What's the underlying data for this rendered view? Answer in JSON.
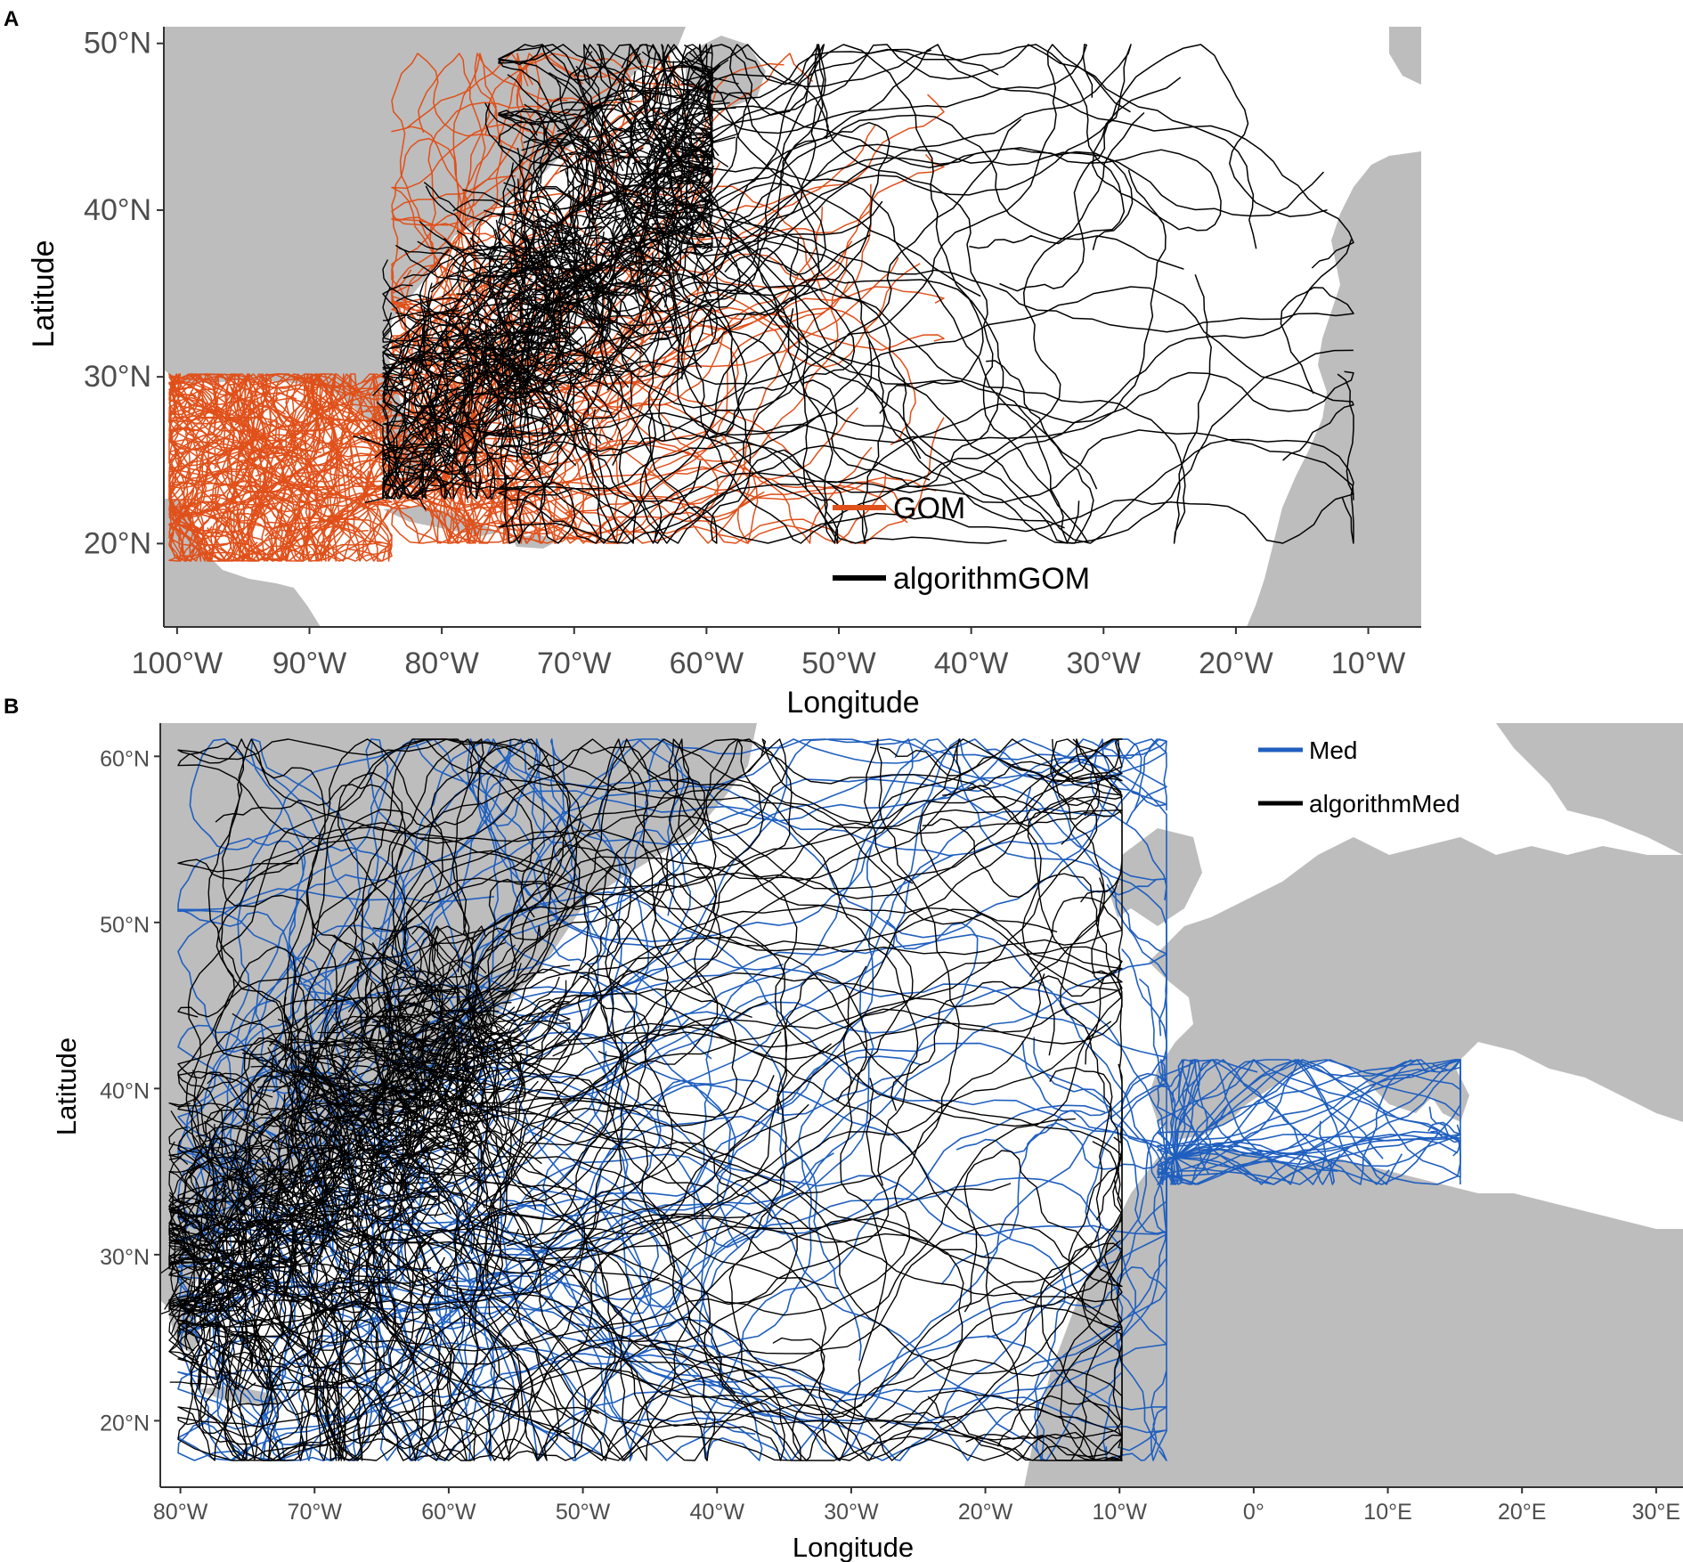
{
  "panel_a": {
    "letter": "A",
    "xlabel": "Longitude",
    "ylabel": "Latitude",
    "x_ticks": [
      "100°W",
      "90°W",
      "80°W",
      "70°W",
      "60°W",
      "50°W",
      "40°W",
      "30°W",
      "20°W",
      "10°W"
    ],
    "y_ticks": [
      "20°N",
      "30°N",
      "40°N",
      "50°N"
    ],
    "legend": [
      {
        "label": "GOM",
        "color": "#e0501a"
      },
      {
        "label": "algorithmGOM",
        "color": "#000000"
      }
    ]
  },
  "panel_b": {
    "letter": "B",
    "xlabel": "Longitude",
    "ylabel": "Latitude",
    "x_ticks": [
      "80°W",
      "70°W",
      "60°W",
      "50°W",
      "40°W",
      "30°W",
      "20°W",
      "10°W",
      "0°",
      "10°E",
      "20°E",
      "30°E"
    ],
    "y_ticks": [
      "20°N",
      "30°N",
      "40°N",
      "50°N",
      "60°N"
    ],
    "legend": [
      {
        "label": "Med",
        "color": "#1f5fbf"
      },
      {
        "label": "algorithmMed",
        "color": "#000000"
      }
    ]
  },
  "colors": {
    "land": "#bdbdbd",
    "ocean": "#ffffff",
    "gom_track": "#e0501a",
    "med_track": "#1f5fbf",
    "algorithm_track": "#000000"
  },
  "chart_data": [
    {
      "type": "scatter",
      "title": "",
      "xlabel": "Longitude",
      "ylabel": "Latitude",
      "xlim": [
        -101,
        -6
      ],
      "ylim": [
        15,
        51
      ],
      "series": [
        {
          "name": "GOM"
        },
        {
          "name": "algorithmGOM"
        }
      ]
    },
    {
      "type": "scatter",
      "title": "",
      "xlabel": "Longitude",
      "ylabel": "Latitude",
      "xlim": [
        -81.5,
        32
      ],
      "ylim": [
        16,
        62
      ]
    }
  ]
}
